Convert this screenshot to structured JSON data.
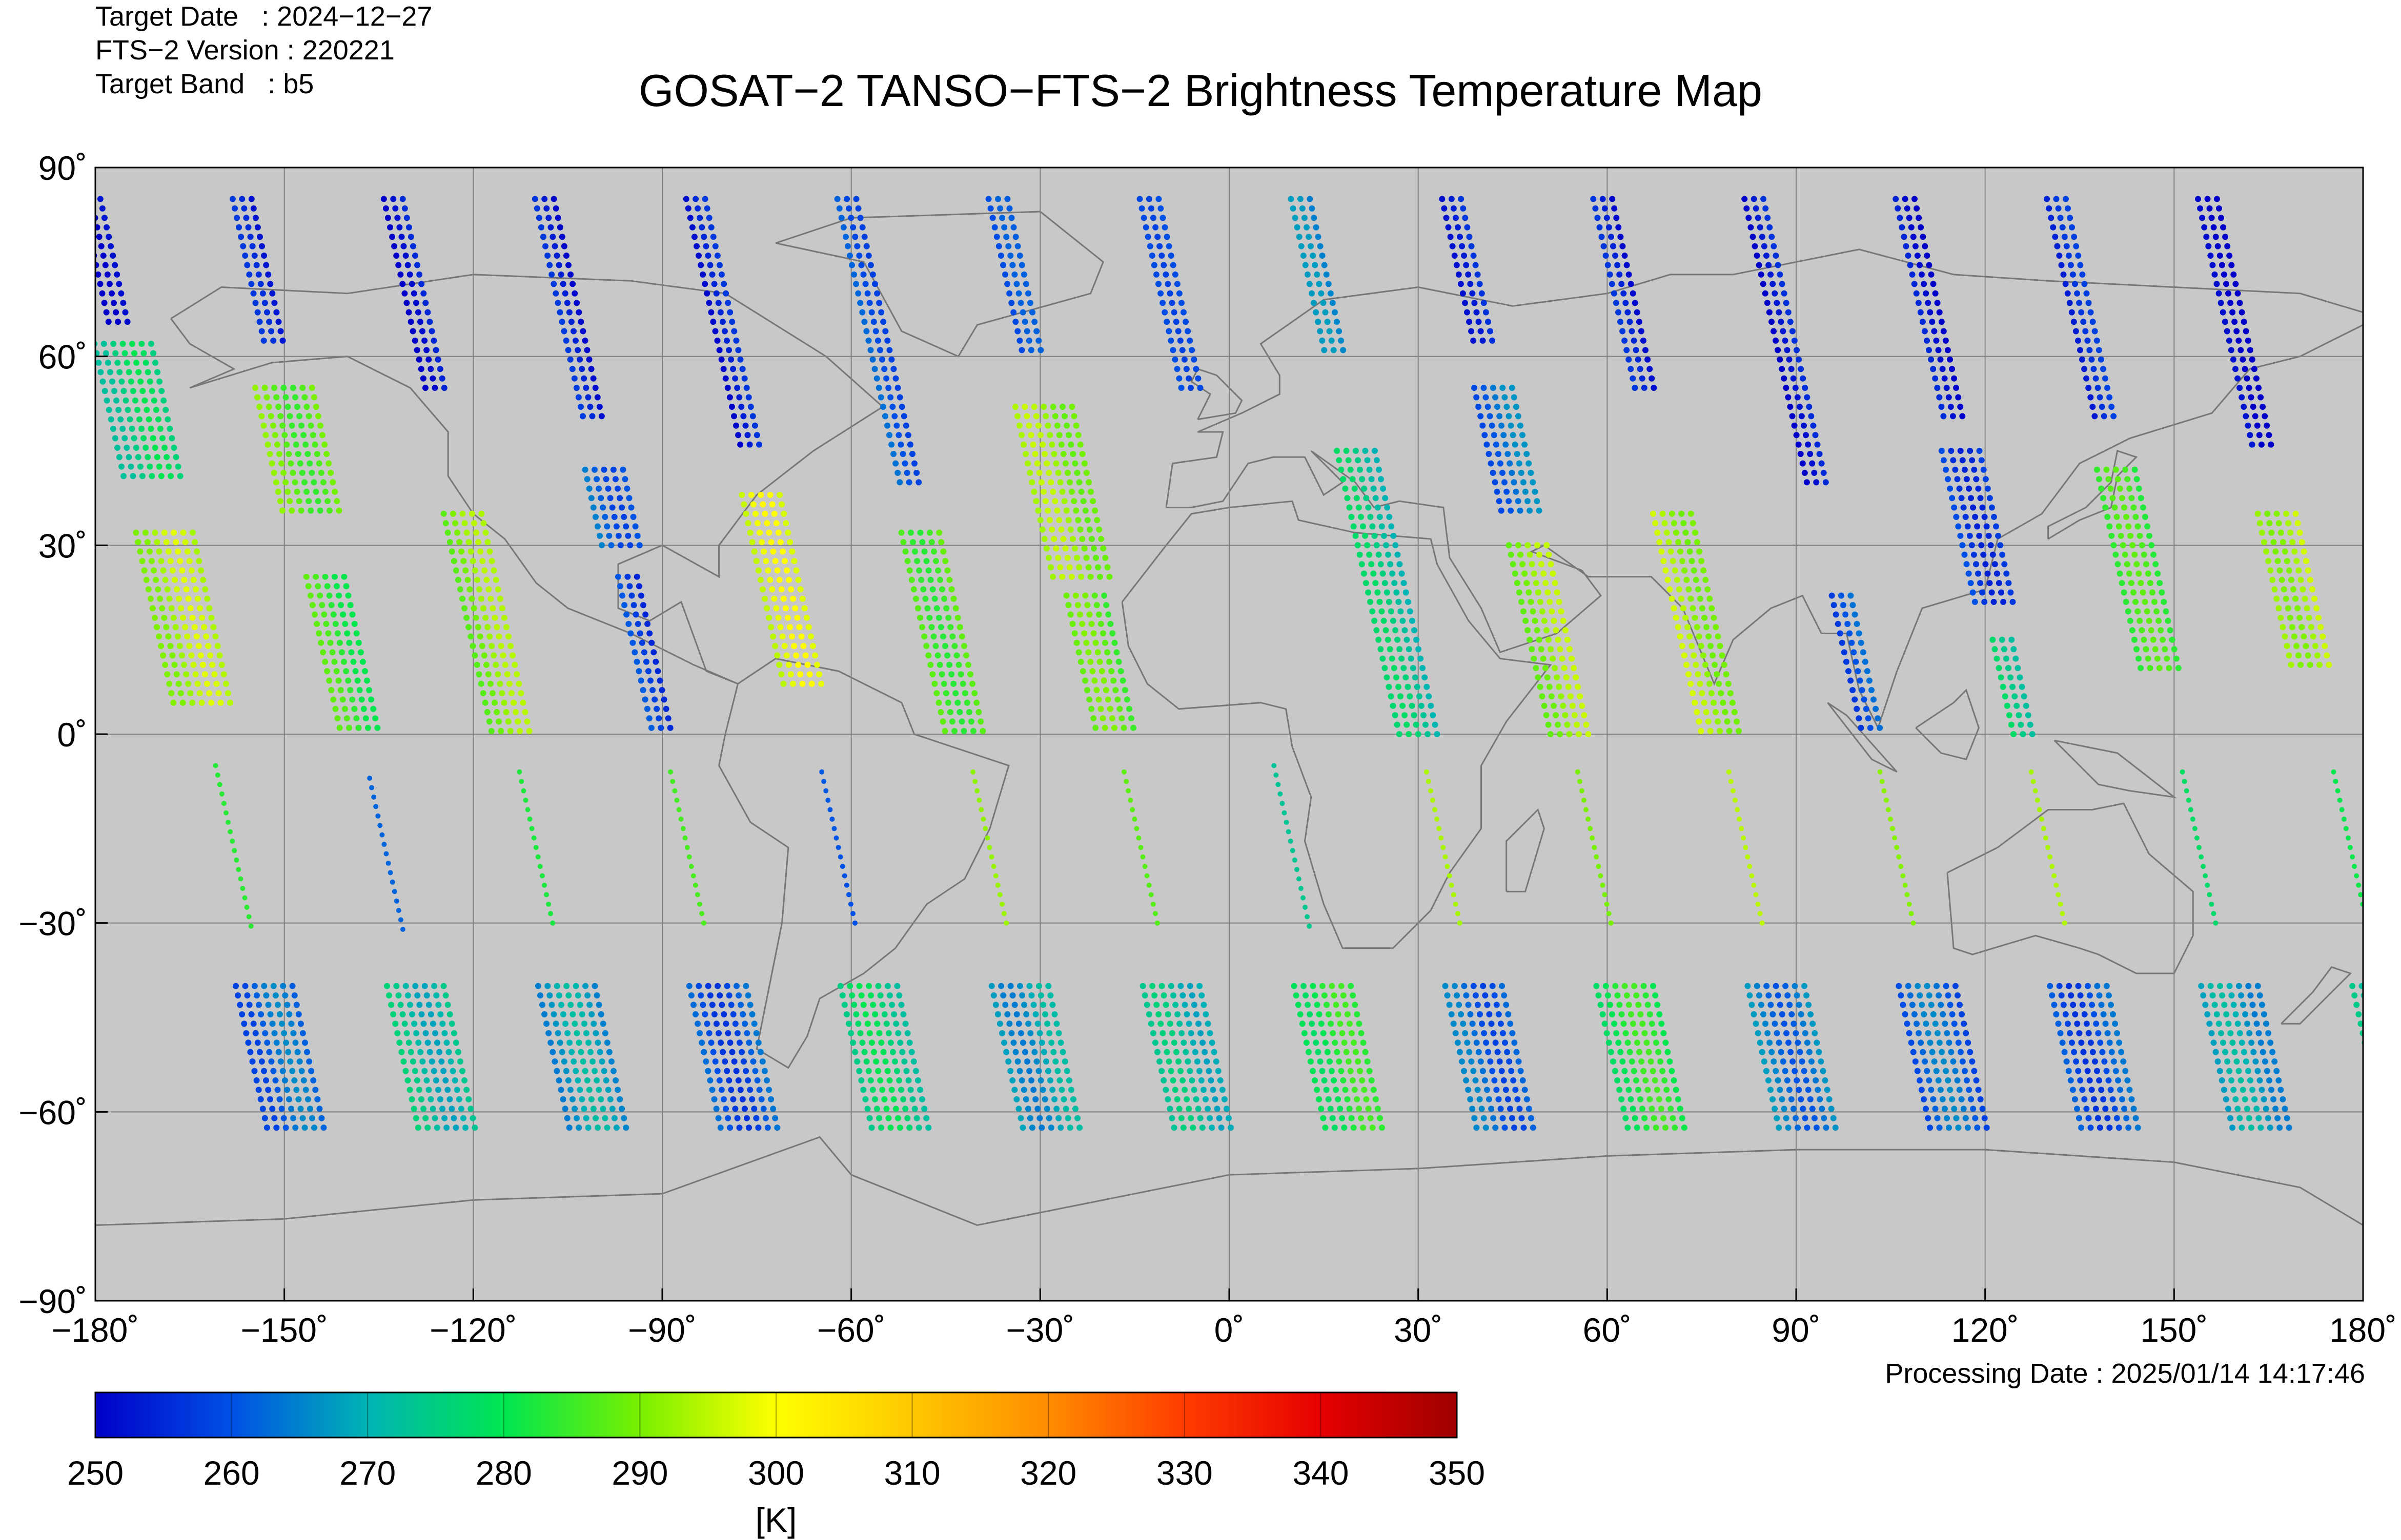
{
  "header": {
    "target_date": "Target Date   : 2024−12−27",
    "version": "FTS−2 Version : 220221",
    "band": "Target Band   : b5"
  },
  "processing_date": "Processing Date : 2025/01/14 14:17:46",
  "chart_data": {
    "type": "scatter",
    "title": "GOSAT−2 TANSO−FTS−2 Brightness Temperature Map",
    "xlabel": "",
    "ylabel": "",
    "xlim": [
      -180,
      180
    ],
    "ylim": [
      -90,
      90
    ],
    "grid": true,
    "x_ticks": [
      {
        "value": -180,
        "label": "−180˚"
      },
      {
        "value": -150,
        "label": "−150˚"
      },
      {
        "value": -120,
        "label": "−120˚"
      },
      {
        "value": -90,
        "label": "−90˚"
      },
      {
        "value": -60,
        "label": "−60˚"
      },
      {
        "value": -30,
        "label": "−30˚"
      },
      {
        "value": 0,
        "label": "0˚"
      },
      {
        "value": 30,
        "label": "30˚"
      },
      {
        "value": 60,
        "label": "60˚"
      },
      {
        "value": 90,
        "label": "90˚"
      },
      {
        "value": 120,
        "label": "120˚"
      },
      {
        "value": 150,
        "label": "150˚"
      },
      {
        "value": 180,
        "label": "180˚"
      }
    ],
    "y_ticks": [
      {
        "value": 90,
        "label": "90˚"
      },
      {
        "value": 60,
        "label": "60˚"
      },
      {
        "value": 30,
        "label": "30˚"
      },
      {
        "value": 0,
        "label": "0˚"
      },
      {
        "value": -30,
        "label": "−30˚"
      },
      {
        "value": -60,
        "label": "−60˚"
      },
      {
        "value": -90,
        "label": "−90˚"
      }
    ],
    "colorbar": {
      "min": 250,
      "max": 350,
      "ticks": [
        "250",
        "260",
        "270",
        "280",
        "290",
        "300",
        "310",
        "320",
        "330",
        "340",
        "350"
      ],
      "unit": "[K]",
      "colors": [
        "#0000c8",
        "#0050e6",
        "#00b4b4",
        "#00e650",
        "#78f000",
        "#ffff00",
        "#ffc800",
        "#ff8c00",
        "#ff3c00",
        "#e60000",
        "#a00000"
      ]
    },
    "swaths": [
      {
        "lon": -162,
        "segments": [
          {
            "lat": [
              85,
              65
            ],
            "t": 253,
            "w": 1
          },
          {
            "lat": [
              62,
              40
            ],
            "t": 276,
            "w": 3
          },
          {
            "lat": [
              32,
              5
            ],
            "t": 294,
            "w": 3
          },
          {
            "lat": [
              -5,
              -31
            ],
            "t": 287,
            "w": 0
          },
          {
            "lat": [
              -40,
              -63
            ],
            "t": 262,
            "w": 3
          }
        ]
      },
      {
        "lon": -138,
        "segments": [
          {
            "lat": [
              85,
              62
            ],
            "t": 253,
            "w": 1
          },
          {
            "lat": [
              55,
              35
            ],
            "t": 288,
            "w": 3
          },
          {
            "lat": [
              25,
              0
            ],
            "t": 284,
            "w": 2
          },
          {
            "lat": [
              -7,
              -31
            ],
            "t": 258,
            "w": 0
          },
          {
            "lat": [
              -40,
              -63
            ],
            "t": 272,
            "w": 3
          }
        ]
      },
      {
        "lon": -114,
        "segments": [
          {
            "lat": [
              85,
              55
            ],
            "t": 253,
            "w": 1
          },
          {
            "lat": [
              35,
              0
            ],
            "t": 291,
            "w": 2
          },
          {
            "lat": [
              -6,
              -31
            ],
            "t": 286,
            "w": 0
          },
          {
            "lat": [
              -40,
              -63
            ],
            "t": 268,
            "w": 3
          }
        ]
      },
      {
        "lon": -90,
        "segments": [
          {
            "lat": [
              85,
              50
            ],
            "t": 254,
            "w": 1
          },
          {
            "lat": [
              42,
              30
            ],
            "t": 262,
            "w": 2
          },
          {
            "lat": [
              25,
              0
            ],
            "t": 258,
            "w": 1
          },
          {
            "lat": [
              -6,
              -31
            ],
            "t": 283,
            "w": 0
          },
          {
            "lat": [
              -40,
              -63
            ],
            "t": 260,
            "w": 3
          }
        ]
      },
      {
        "lon": -66,
        "segments": [
          {
            "lat": [
              85,
              45
            ],
            "t": 253,
            "w": 1
          },
          {
            "lat": [
              38,
              8
            ],
            "t": 297,
            "w": 2
          },
          {
            "lat": [
              -6,
              -31
            ],
            "t": 262,
            "w": 0
          },
          {
            "lat": [
              -40,
              -63
            ],
            "t": 276,
            "w": 3
          }
        ]
      },
      {
        "lon": -42,
        "segments": [
          {
            "lat": [
              85,
              40
            ],
            "t": 262,
            "w": 1
          },
          {
            "lat": [
              32,
              0
            ],
            "t": 287,
            "w": 2
          },
          {
            "lat": [
              -6,
              -31
            ],
            "t": 292,
            "w": 0
          },
          {
            "lat": [
              -40,
              -63
            ],
            "t": 268,
            "w": 3
          }
        ]
      },
      {
        "lon": -18,
        "segments": [
          {
            "lat": [
              85,
              60
            ],
            "t": 258,
            "w": 1
          },
          {
            "lat": [
              52,
              25
            ],
            "t": 292,
            "w": 3
          },
          {
            "lat": [
              22,
              0
            ],
            "t": 287,
            "w": 2
          },
          {
            "lat": [
              -6,
              -31
            ],
            "t": 286,
            "w": 0
          },
          {
            "lat": [
              -40,
              -63
            ],
            "t": 272,
            "w": 3
          }
        ]
      },
      {
        "lon": 6,
        "segments": [
          {
            "lat": [
              85,
              55
            ],
            "t": 262,
            "w": 1
          },
          {
            "lat": [
              -5,
              -31
            ],
            "t": 276,
            "w": 0
          },
          {
            "lat": [
              -40,
              -63
            ],
            "t": 282,
            "w": 3
          }
        ]
      },
      {
        "lon": 30,
        "segments": [
          {
            "lat": [
              85,
              60
            ],
            "t": 264,
            "w": 1
          },
          {
            "lat": [
              45,
              0
            ],
            "t": 274,
            "w": 2
          },
          {
            "lat": [
              -6,
              -31
            ],
            "t": 290,
            "w": 0
          },
          {
            "lat": [
              -40,
              -63
            ],
            "t": 262,
            "w": 3
          }
        ]
      },
      {
        "lon": 54,
        "segments": [
          {
            "lat": [
              85,
              62
            ],
            "t": 256,
            "w": 1
          },
          {
            "lat": [
              55,
              35
            ],
            "t": 263,
            "w": 2
          },
          {
            "lat": [
              30,
              0
            ],
            "t": 292,
            "w": 2
          },
          {
            "lat": [
              -6,
              -31
            ],
            "t": 294,
            "w": 0
          },
          {
            "lat": [
              -40,
              -63
            ],
            "t": 282,
            "w": 3
          }
        ]
      },
      {
        "lon": 78,
        "segments": [
          {
            "lat": [
              85,
              55
            ],
            "t": 253,
            "w": 1
          },
          {
            "lat": [
              35,
              0
            ],
            "t": 293,
            "w": 2
          },
          {
            "lat": [
              -6,
              -31
            ],
            "t": 291,
            "w": 0
          },
          {
            "lat": [
              -40,
              -63
            ],
            "t": 264,
            "w": 3
          }
        ]
      },
      {
        "lon": 102,
        "segments": [
          {
            "lat": [
              85,
              40
            ],
            "t": 253,
            "w": 1
          },
          {
            "lat": [
              22,
              0
            ],
            "t": 260,
            "w": 1
          },
          {
            "lat": [
              -6,
              -31
            ],
            "t": 294,
            "w": 0
          },
          {
            "lat": [
              -40,
              -63
            ],
            "t": 262,
            "w": 3
          }
        ]
      },
      {
        "lon": 126,
        "segments": [
          {
            "lat": [
              85,
              50
            ],
            "t": 253,
            "w": 1
          },
          {
            "lat": [
              45,
              20
            ],
            "t": 258,
            "w": 2
          },
          {
            "lat": [
              15,
              0
            ],
            "t": 276,
            "w": 1
          },
          {
            "lat": [
              -6,
              -31
            ],
            "t": 292,
            "w": 0
          },
          {
            "lat": [
              -40,
              -63
            ],
            "t": 260,
            "w": 3
          }
        ]
      },
      {
        "lon": 150,
        "segments": [
          {
            "lat": [
              85,
              50
            ],
            "t": 254,
            "w": 1
          },
          {
            "lat": [
              42,
              10
            ],
            "t": 284,
            "w": 2
          },
          {
            "lat": [
              -6,
              -31
            ],
            "t": 278,
            "w": 0
          },
          {
            "lat": [
              -40,
              -63
            ],
            "t": 268,
            "w": 3
          }
        ]
      },
      {
        "lon": 174,
        "segments": [
          {
            "lat": [
              85,
              45
            ],
            "t": 253,
            "w": 1
          },
          {
            "lat": [
              35,
              10
            ],
            "t": 294,
            "w": 2
          },
          {
            "lat": [
              -6,
              -31
            ],
            "t": 282,
            "w": 0
          },
          {
            "lat": [
              -40,
              -63
            ],
            "t": 276,
            "w": 3
          }
        ]
      }
    ]
  }
}
